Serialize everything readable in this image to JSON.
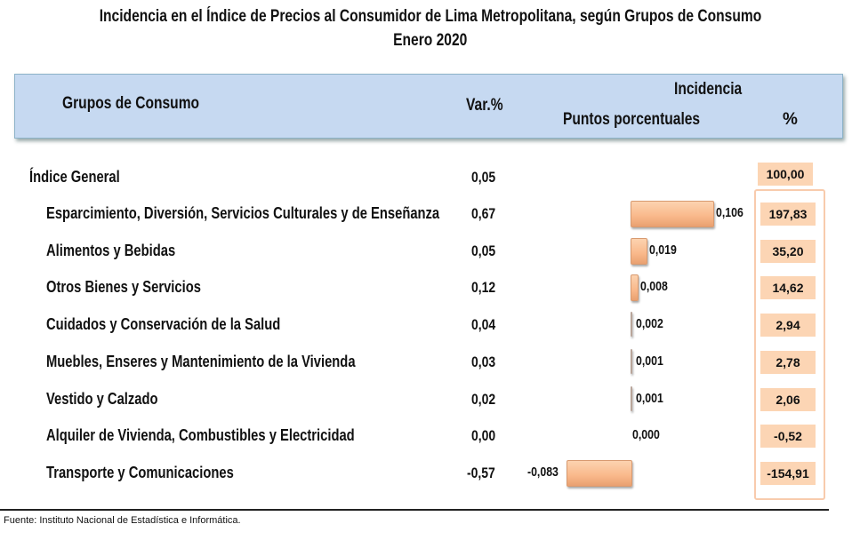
{
  "title": "Incidencia  en el Índice de Precios al Consumidor de  Lima Metropolitana, según Grupos de Consumo",
  "subtitle": "Enero 2020",
  "header": {
    "groups": "Grupos de Consumo",
    "var": "Var.%",
    "incidence": "Incidencia",
    "points": "Puntos porcentuales",
    "percent": "%"
  },
  "general": {
    "label": "Índice General",
    "var": "0,05",
    "pct": "100,00"
  },
  "colors": {
    "bar": "#f9b88a",
    "header_bg": "#c6d9f1",
    "pct_bg": "#fcd5b4"
  },
  "chart_data": {
    "type": "bar",
    "orientation": "horizontal",
    "categories": [
      "Esparcimiento, Diversión, Servicios Culturales y de Enseñanza",
      "Alimentos y Bebidas",
      "Otros  Bienes y Servicios",
      "Cuidados y Conservación de la Salud",
      "Muebles, Enseres y Mantenimiento de la Vivienda",
      "Vestido y Calzado",
      "Alquiler de Vivienda, Combustibles y Electricidad",
      "Transporte y Comunicaciones"
    ],
    "var": [
      "0,67",
      "0,05",
      "0,12",
      "0,04",
      "0,03",
      "0,02",
      "0,00",
      "-0,57"
    ],
    "values": [
      0.106,
      0.019,
      0.008,
      0.002,
      0.001,
      0.001,
      0.0,
      -0.083
    ],
    "value_labels": [
      "0,106",
      "0,019",
      "0,008",
      "0,002",
      "0,001",
      "0,001",
      "0,000",
      "-0,083"
    ],
    "pct": [
      "197,83",
      "35,20",
      "14,62",
      "2,94",
      "2,78",
      "2,06",
      "-0,52",
      "-154,91"
    ],
    "grid": false
  },
  "source": "Fuente: Instituto Nacional de Estadística e Informática."
}
